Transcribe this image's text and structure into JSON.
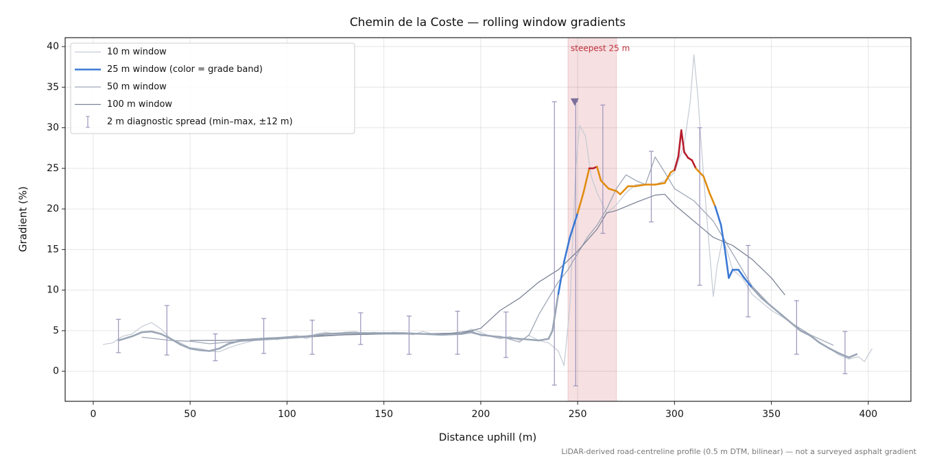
{
  "chart_data": {
    "type": "line",
    "title": "Chemin de la Coste — rolling window gradients",
    "xlabel": "Distance uphill (m)",
    "ylabel": "Gradient (%)",
    "footnote": "LiDAR-derived road-centreline profile (0.5 m DTM, bilinear) — not a surveyed asphalt gradient",
    "xlim": [
      -14.5,
      422
    ],
    "ylim": [
      -3.7,
      41.1
    ],
    "xticks": [
      0,
      50,
      100,
      150,
      200,
      250,
      300,
      350,
      400
    ],
    "yticks": [
      0,
      5,
      10,
      15,
      20,
      25,
      30,
      35,
      40
    ],
    "grid": true,
    "legend": "upper left",
    "series": [
      {
        "name": "10 m window",
        "color": "#c3c9d3",
        "x": [
          5,
          10,
          15,
          20,
          25,
          30,
          35,
          40,
          45,
          50,
          55,
          60,
          65,
          70,
          75,
          80,
          85,
          90,
          95,
          100,
          105,
          110,
          115,
          120,
          125,
          130,
          135,
          140,
          145,
          150,
          155,
          160,
          165,
          170,
          175,
          180,
          185,
          190,
          195,
          200,
          205,
          210,
          215,
          220,
          225,
          230,
          235,
          240,
          243,
          246,
          249,
          251,
          254,
          257,
          260,
          265,
          270,
          275,
          280,
          285,
          290,
          295,
          300,
          305,
          308,
          310,
          312,
          315,
          318,
          320,
          322,
          325,
          330,
          335,
          340,
          345,
          350,
          355,
          360,
          365,
          370,
          375,
          380,
          385,
          390,
          395,
          398,
          402
        ],
        "values": [
          3.3,
          3.5,
          4.3,
          4.6,
          5.5,
          6.0,
          5.2,
          4.0,
          3.5,
          2.9,
          2.8,
          2.5,
          2.4,
          2.9,
          3.3,
          3.6,
          3.9,
          4.0,
          3.9,
          4.2,
          4.4,
          4.0,
          4.6,
          4.8,
          4.6,
          4.8,
          4.9,
          4.6,
          4.8,
          4.6,
          4.8,
          4.7,
          4.5,
          4.9,
          4.6,
          4.5,
          4.7,
          4.6,
          5.2,
          4.8,
          4.3,
          4.0,
          4.3,
          3.8,
          4.4,
          3.8,
          3.5,
          2.5,
          0.7,
          8,
          25,
          30.3,
          29,
          24,
          22,
          19.5,
          20.5,
          22,
          23,
          23,
          23,
          23.5,
          24.5,
          28,
          33,
          39,
          34,
          24,
          15,
          9.2,
          13,
          16.5,
          12.5,
          11.5,
          9.5,
          8.5,
          7.5,
          6.8,
          6.0,
          5.0,
          4.5,
          3.5,
          2.8,
          2.0,
          1.5,
          1.8,
          1.2,
          2.8
        ]
      },
      {
        "name": "25 m window (color = grade band)",
        "color": "#3a78d4",
        "grade_bands": {
          "thresholds": [
            10,
            20,
            25
          ],
          "colors": [
            "#9aa5b5",
            "#3a78d4",
            "#e08c10",
            "#b81c2c"
          ]
        },
        "x": [
          13,
          20,
          25,
          30,
          35,
          40,
          45,
          50,
          55,
          60,
          65,
          70,
          75,
          80,
          90,
          100,
          110,
          120,
          130,
          140,
          150,
          160,
          170,
          180,
          190,
          195,
          200,
          210,
          220,
          230,
          235,
          237,
          240,
          243,
          246,
          250,
          253,
          256,
          258,
          260,
          262,
          266,
          270,
          272,
          276,
          280,
          285,
          290,
          295,
          298,
          300,
          302,
          303.5,
          305,
          307,
          309,
          311,
          315,
          318,
          321,
          324,
          326,
          328,
          330,
          333,
          336,
          340,
          345,
          350,
          355,
          360,
          365,
          370,
          375,
          380,
          385,
          390,
          394
        ],
        "values": [
          3.8,
          4.3,
          4.8,
          4.9,
          4.6,
          4.0,
          3.3,
          2.8,
          2.6,
          2.5,
          2.8,
          3.4,
          3.7,
          3.9,
          4.0,
          4.2,
          4.3,
          4.6,
          4.7,
          4.7,
          4.7,
          4.7,
          4.6,
          4.5,
          4.6,
          4.8,
          4.5,
          4.2,
          4.0,
          3.8,
          4.0,
          5.0,
          9.5,
          13.5,
          16.5,
          19.5,
          22,
          25,
          25.0,
          25.2,
          23.5,
          22.5,
          22.2,
          21.8,
          22.8,
          22.8,
          23,
          23,
          23.2,
          24.5,
          24.8,
          26.5,
          29.7,
          27,
          26.3,
          26,
          25.0,
          24,
          22,
          20.3,
          18,
          15,
          11.5,
          12.5,
          12.5,
          11.5,
          10.3,
          9,
          8,
          7,
          6,
          5,
          4.4,
          3.5,
          2.8,
          2.2,
          1.7,
          2.1
        ]
      },
      {
        "name": "50 m window",
        "color": "#9ea6b6",
        "x": [
          25,
          40,
          50,
          60,
          70,
          90,
          110,
          130,
          150,
          170,
          185,
          195,
          200,
          210,
          220,
          225,
          230,
          235,
          240,
          245,
          250,
          255,
          260,
          265,
          270,
          275,
          280,
          285,
          290,
          295,
          300,
          310,
          320,
          330,
          340,
          350,
          360,
          370,
          382
        ],
        "values": [
          4.2,
          3.8,
          3.7,
          3.4,
          3.6,
          3.9,
          4.2,
          4.5,
          4.6,
          4.6,
          4.7,
          5.0,
          4.4,
          4.3,
          3.6,
          4.5,
          7.0,
          9.0,
          11,
          12.5,
          14.5,
          16.5,
          18,
          20,
          22.5,
          24.2,
          23.5,
          23,
          26.4,
          24.5,
          22.5,
          21,
          18.5,
          14.5,
          10.5,
          8,
          6,
          4.5,
          3.2
        ]
      },
      {
        "name": "100 m window",
        "color": "#7b8396",
        "x": [
          50,
          70,
          90,
          110,
          130,
          150,
          170,
          190,
          200,
          210,
          220,
          230,
          240,
          250,
          260,
          265,
          270,
          280,
          290,
          295,
          300,
          310,
          320,
          330,
          340,
          350,
          357
        ],
        "values": [
          3.8,
          3.8,
          4.1,
          4.3,
          4.5,
          4.6,
          4.6,
          4.7,
          5.3,
          7.5,
          9,
          11,
          12.5,
          14.8,
          17.5,
          19.5,
          19.8,
          20.8,
          21.7,
          21.8,
          20.5,
          18.5,
          16.5,
          15.5,
          13.8,
          11.5,
          9.4
        ]
      }
    ],
    "spread": {
      "name": "2 m diagnostic spread (min–max, ±12 m)",
      "color": "#9b92bb",
      "x": [
        13,
        38,
        63,
        88,
        113,
        138,
        163,
        188,
        213,
        238,
        249,
        263,
        288,
        313,
        338,
        363,
        388
      ],
      "low": [
        2.3,
        2.0,
        1.3,
        2.2,
        2.1,
        3.3,
        2.1,
        2.1,
        1.7,
        -1.7,
        -1.8,
        17.0,
        18.4,
        10.6,
        6.7,
        2.1,
        -0.3
      ],
      "high": [
        6.4,
        8.1,
        4.6,
        6.5,
        6.3,
        7.2,
        6.8,
        7.4,
        7.3,
        33.2,
        33.2,
        32.8,
        27.1,
        30.0,
        15.5,
        8.7,
        4.9
      ]
    },
    "max_marker": {
      "x": 248.5,
      "y": 33.2,
      "color": "#7b6f9a"
    },
    "highlight": {
      "label": "steepest 25 m",
      "start": 245,
      "end": 270,
      "color": "#c0303a"
    }
  }
}
